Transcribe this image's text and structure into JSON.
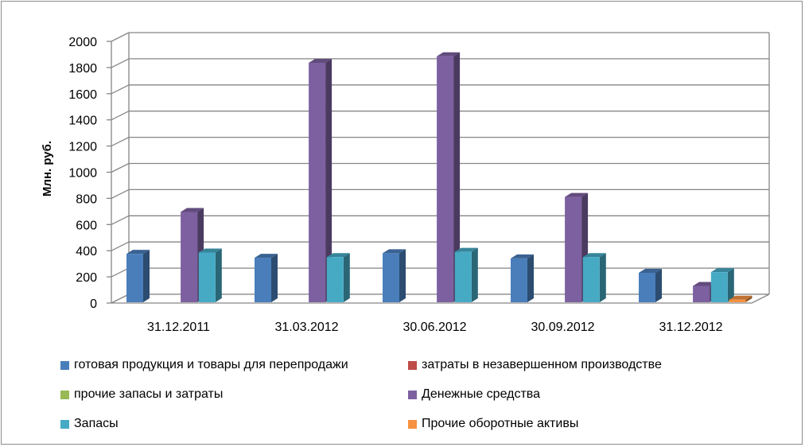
{
  "chart_data": {
    "type": "bar",
    "ylabel": "Млн. руб.",
    "ylim": [
      0,
      2000
    ],
    "yticks": [
      0,
      200,
      400,
      600,
      800,
      1000,
      1200,
      1400,
      1600,
      1800,
      2000
    ],
    "categories": [
      "31.12.2011",
      "31.03.2012",
      "30.06.2012",
      "30.09.2012",
      "31.12.2012"
    ],
    "grid": true,
    "legend_position": "bottom",
    "series": [
      {
        "name": "готовая продукция и товары для перепродажи",
        "color": "#4a7ebb",
        "values": [
          370,
          340,
          375,
          335,
          225
        ]
      },
      {
        "name": "затраты в незавершенном производстве",
        "color": "#be4b48",
        "values": [
          0,
          0,
          0,
          0,
          0
        ]
      },
      {
        "name": "прочие запасы и затраты",
        "color": "#98b954",
        "values": [
          0,
          0,
          0,
          0,
          0
        ]
      },
      {
        "name": "Денежные средства",
        "color": "#7d60a0",
        "values": [
          690,
          1830,
          1880,
          805,
          125
        ]
      },
      {
        "name": "Запасы",
        "color": "#46aac5",
        "values": [
          380,
          345,
          385,
          345,
          230
        ]
      },
      {
        "name": "Прочие оборотные активы",
        "color": "#f69240",
        "values": [
          0,
          0,
          0,
          0,
          20
        ]
      }
    ]
  }
}
